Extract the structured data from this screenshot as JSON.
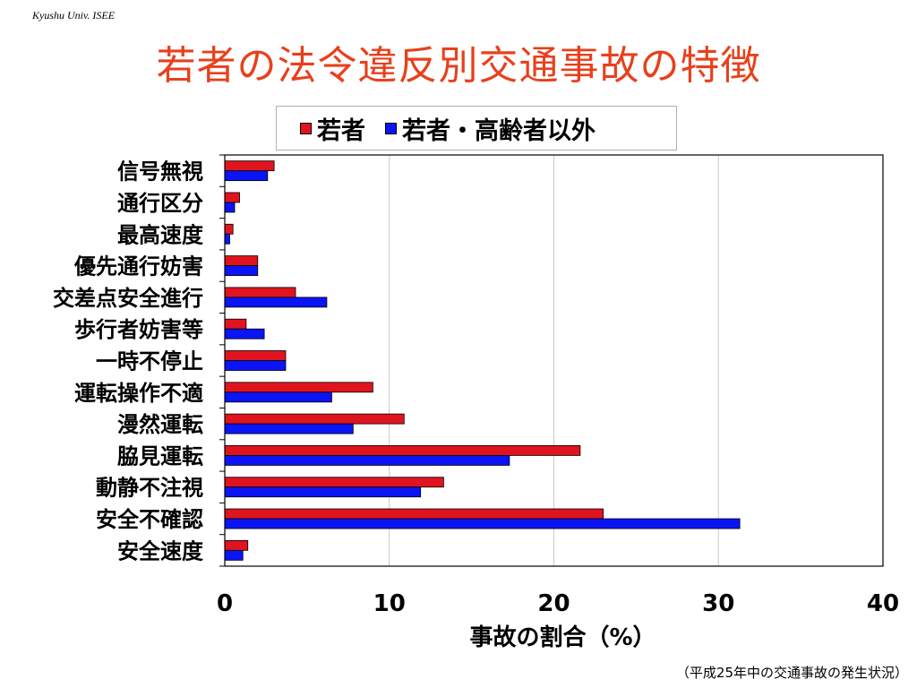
{
  "slide": {
    "credit": "Kyushu Univ. ISEE",
    "title": "若者の法令違反別交通事故の特徴",
    "footnote": "（平成25年中の交通事故の発生状況）"
  },
  "colors": {
    "title": "#e8401c",
    "series_young": "#e0141e",
    "series_other": "#0a14f5",
    "grid": "#c8c8c8",
    "axis": "#000000"
  },
  "chart_data": {
    "type": "bar",
    "orientation": "horizontal",
    "categories": [
      "信号無視",
      "通行区分",
      "最高速度",
      "優先通行妨害",
      "交差点安全進行",
      "歩行者妨害等",
      "一時不停止",
      "運転操作不適",
      "漫然運転",
      "脇見運転",
      "動静不注視",
      "安全不確認",
      "安全速度"
    ],
    "series": [
      {
        "name": "若者",
        "color": "#e0141e",
        "values": [
          3.0,
          0.9,
          0.5,
          2.0,
          4.3,
          1.3,
          3.7,
          9.0,
          10.9,
          21.6,
          13.3,
          23.0,
          1.4
        ]
      },
      {
        "name": "若者・高齢者以外",
        "color": "#0a14f5",
        "values": [
          2.6,
          0.6,
          0.3,
          2.0,
          6.2,
          2.4,
          3.7,
          6.5,
          7.8,
          17.3,
          11.9,
          31.3,
          1.1
        ]
      }
    ],
    "xlabel": "事故の割合（%）",
    "ylabel": "",
    "xlim": [
      0,
      40
    ],
    "xticks": [
      0,
      10,
      20,
      30,
      40
    ],
    "grid": true,
    "legend_position": "top"
  }
}
